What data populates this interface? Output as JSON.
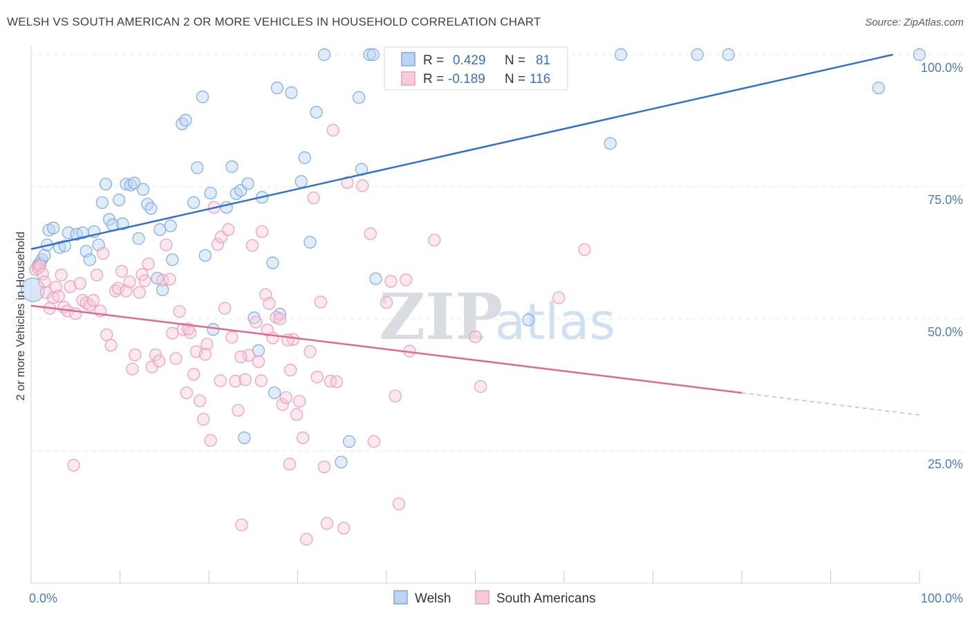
{
  "header": {
    "title": "WELSH VS SOUTH AMERICAN 2 OR MORE VEHICLES IN HOUSEHOLD CORRELATION CHART",
    "source": "Source: ZipAtlas.com"
  },
  "watermark": {
    "zip": "ZIP",
    "atlas": "atlas"
  },
  "legend": {
    "r_label": "R =",
    "n_label": "N =",
    "items": [
      {
        "r": "0.429",
        "n": "81"
      },
      {
        "r": "-0.189",
        "n": "116"
      }
    ]
  },
  "bottom_legend": [
    "Welsh",
    "South Americans"
  ],
  "chart_data": {
    "type": "scatter",
    "title": "WELSH VS SOUTH AMERICAN 2 OR MORE VEHICLES IN HOUSEHOLD CORRELATION CHART",
    "xlabel": "",
    "ylabel": "2 or more Vehicles in Household",
    "xlim": [
      0,
      100
    ],
    "ylim": [
      0,
      100
    ],
    "x_tick_labels": [
      "0.0%",
      "100.0%"
    ],
    "y_ticks": [
      {
        "value": 25,
        "label": "25.0%"
      },
      {
        "value": 50,
        "label": "50.0%"
      },
      {
        "value": 75,
        "label": "75.0%"
      },
      {
        "value": 100,
        "label": "100.0%"
      }
    ],
    "grid": true,
    "legend_position": "top-center",
    "series": [
      {
        "name": "Welsh",
        "color": "#7aaae6",
        "fill": "#bcd4f2",
        "line_color": "#2f6fd0",
        "trend": {
          "x": [
            0,
            97
          ],
          "y": [
            63.2,
            100
          ]
        },
        "points": [
          [
            0.2,
            55.5
          ],
          [
            0.8,
            60.2
          ],
          [
            1.0,
            60.5
          ],
          [
            1.2,
            61.2
          ],
          [
            1.5,
            62.0
          ],
          [
            1.8,
            64.0
          ],
          [
            2.0,
            66.8
          ],
          [
            2.5,
            67.2
          ],
          [
            3.2,
            63.5
          ],
          [
            3.8,
            63.8
          ],
          [
            4.2,
            66.3
          ],
          [
            5.1,
            66.0
          ],
          [
            5.8,
            66.3
          ],
          [
            6.2,
            62.8
          ],
          [
            6.6,
            61.2
          ],
          [
            7.1,
            66.5
          ],
          [
            7.6,
            64.0
          ],
          [
            8.0,
            72.0
          ],
          [
            8.4,
            75.5
          ],
          [
            8.8,
            68.8
          ],
          [
            9.2,
            67.8
          ],
          [
            9.9,
            72.5
          ],
          [
            10.3,
            68.0
          ],
          [
            10.7,
            75.5
          ],
          [
            11.2,
            75.3
          ],
          [
            11.6,
            75.7
          ],
          [
            12.1,
            65.2
          ],
          [
            12.6,
            74.5
          ],
          [
            13.1,
            71.7
          ],
          [
            13.5,
            70.9
          ],
          [
            14.2,
            57.7
          ],
          [
            14.5,
            66.9
          ],
          [
            14.8,
            55.5
          ],
          [
            15.7,
            67.6
          ],
          [
            15.9,
            61.2
          ],
          [
            17.0,
            86.9
          ],
          [
            17.4,
            87.6
          ],
          [
            18.3,
            72.0
          ],
          [
            18.7,
            78.6
          ],
          [
            19.3,
            92.0
          ],
          [
            19.6,
            62.0
          ],
          [
            20.2,
            73.8
          ],
          [
            20.5,
            48.0
          ],
          [
            22.0,
            71.1
          ],
          [
            22.6,
            78.8
          ],
          [
            23.1,
            73.7
          ],
          [
            23.6,
            74.3
          ],
          [
            24.4,
            75.6
          ],
          [
            25.1,
            50.2
          ],
          [
            25.6,
            44.0
          ],
          [
            24.0,
            27.5
          ],
          [
            27.2,
            60.6
          ],
          [
            27.4,
            36.0
          ],
          [
            27.7,
            93.7
          ],
          [
            28.0,
            50.9
          ],
          [
            29.3,
            92.8
          ],
          [
            30.4,
            76.0
          ],
          [
            30.8,
            80.5
          ],
          [
            31.4,
            64.5
          ],
          [
            32.1,
            89.1
          ],
          [
            26.0,
            73.0
          ],
          [
            34.9,
            22.9
          ],
          [
            36.9,
            91.9
          ],
          [
            37.2,
            78.3
          ],
          [
            38.1,
            100
          ],
          [
            38.5,
            100
          ],
          [
            35.8,
            26.8
          ],
          [
            38.8,
            57.6
          ],
          [
            41.3,
            100
          ],
          [
            43.3,
            100
          ],
          [
            44.8,
            100
          ],
          [
            47.2,
            100
          ],
          [
            49.3,
            100
          ],
          [
            56.0,
            49.8
          ],
          [
            65.2,
            83.2
          ],
          [
            66.4,
            100
          ],
          [
            75.0,
            100
          ],
          [
            78.5,
            100
          ],
          [
            95.4,
            93.7
          ],
          [
            100,
            100
          ],
          [
            33.0,
            100
          ]
        ]
      },
      {
        "name": "South Americans",
        "color": "#ee9cb8",
        "fill": "#f8cbd9",
        "line_color": "#e06890",
        "trend": {
          "x": [
            0,
            80
          ],
          "y": [
            52.5,
            36.0
          ]
        },
        "trend_dashed": {
          "x": [
            80,
            100
          ],
          "y": [
            36.0,
            31.8
          ]
        },
        "points": [
          [
            0.5,
            59.3
          ],
          [
            0.8,
            59.6
          ],
          [
            1.0,
            60.0
          ],
          [
            1.3,
            58.5
          ],
          [
            1.5,
            57.0
          ],
          [
            1.7,
            55.0
          ],
          [
            2.1,
            52.0
          ],
          [
            2.5,
            54.0
          ],
          [
            2.8,
            56.0
          ],
          [
            3.1,
            54.3
          ],
          [
            3.4,
            58.3
          ],
          [
            3.7,
            52.2
          ],
          [
            4.1,
            51.5
          ],
          [
            4.4,
            56.1
          ],
          [
            4.8,
            22.3
          ],
          [
            5.0,
            51.0
          ],
          [
            5.5,
            56.7
          ],
          [
            5.8,
            53.5
          ],
          [
            6.2,
            53.0
          ],
          [
            6.6,
            52.6
          ],
          [
            7.0,
            53.5
          ],
          [
            7.4,
            58.3
          ],
          [
            7.8,
            51.5
          ],
          [
            8.1,
            62.4
          ],
          [
            8.5,
            47.0
          ],
          [
            9.0,
            45.0
          ],
          [
            9.5,
            55.3
          ],
          [
            9.8,
            55.8
          ],
          [
            10.2,
            59.0
          ],
          [
            10.7,
            55.3
          ],
          [
            11.1,
            57.0
          ],
          [
            11.4,
            40.5
          ],
          [
            11.7,
            43.2
          ],
          [
            12.2,
            55.0
          ],
          [
            12.5,
            58.4
          ],
          [
            12.8,
            57.2
          ],
          [
            13.2,
            60.4
          ],
          [
            13.6,
            40.9
          ],
          [
            14.0,
            43.2
          ],
          [
            14.4,
            42.0
          ],
          [
            14.8,
            57.3
          ],
          [
            15.2,
            64.0
          ],
          [
            15.6,
            57.5
          ],
          [
            15.9,
            47.3
          ],
          [
            16.3,
            42.5
          ],
          [
            16.7,
            51.4
          ],
          [
            17.1,
            48.0
          ],
          [
            17.5,
            36.0
          ],
          [
            17.9,
            47.4
          ],
          [
            18.3,
            39.5
          ],
          [
            18.6,
            43.8
          ],
          [
            19.0,
            34.5
          ],
          [
            19.4,
            31.0
          ],
          [
            19.8,
            45.2
          ],
          [
            20.2,
            27.0
          ],
          [
            20.6,
            71.1
          ],
          [
            21.0,
            64.1
          ],
          [
            21.4,
            65.5
          ],
          [
            21.8,
            52.0
          ],
          [
            22.2,
            66.9
          ],
          [
            22.6,
            46.5
          ],
          [
            23.0,
            38.2
          ],
          [
            23.3,
            32.7
          ],
          [
            23.7,
            11.0
          ],
          [
            24.1,
            38.5
          ],
          [
            24.5,
            43.1
          ],
          [
            24.9,
            63.9
          ],
          [
            25.3,
            49.4
          ],
          [
            25.6,
            41.9
          ],
          [
            26.0,
            66.5
          ],
          [
            26.4,
            54.6
          ],
          [
            26.8,
            52.9
          ],
          [
            27.2,
            46.4
          ],
          [
            27.6,
            50.3
          ],
          [
            28.0,
            50.0
          ],
          [
            28.3,
            33.8
          ],
          [
            28.7,
            35.1
          ],
          [
            29.1,
            22.5
          ],
          [
            29.5,
            46.1
          ],
          [
            29.9,
            31.9
          ],
          [
            30.2,
            34.4
          ],
          [
            30.6,
            27.5
          ],
          [
            31.0,
            8.3
          ],
          [
            31.4,
            43.8
          ],
          [
            31.8,
            72.9
          ],
          [
            32.2,
            39.0
          ],
          [
            32.6,
            53.2
          ],
          [
            33.0,
            22.0
          ],
          [
            33.3,
            11.3
          ],
          [
            33.7,
            38.2
          ],
          [
            34.0,
            85.7
          ],
          [
            34.4,
            38.1
          ],
          [
            35.6,
            75.8
          ],
          [
            35.2,
            10.4
          ],
          [
            37.3,
            75.2
          ],
          [
            38.2,
            66.1
          ],
          [
            38.6,
            26.8
          ],
          [
            40.0,
            53.1
          ],
          [
            40.5,
            57.1
          ],
          [
            41.0,
            35.4
          ],
          [
            41.4,
            15.0
          ],
          [
            42.2,
            57.4
          ],
          [
            42.6,
            43.9
          ],
          [
            45.4,
            64.9
          ],
          [
            50.0,
            46.6
          ],
          [
            50.6,
            37.2
          ],
          [
            59.4,
            54.0
          ],
          [
            62.3,
            63.1
          ],
          [
            29.2,
            40.3
          ],
          [
            21.3,
            38.3
          ],
          [
            28.9,
            46.0
          ],
          [
            25.9,
            38.3
          ],
          [
            17.7,
            48.1
          ],
          [
            19.6,
            43.3
          ],
          [
            26.6,
            47.9
          ],
          [
            23.6,
            42.8
          ]
        ]
      }
    ]
  }
}
